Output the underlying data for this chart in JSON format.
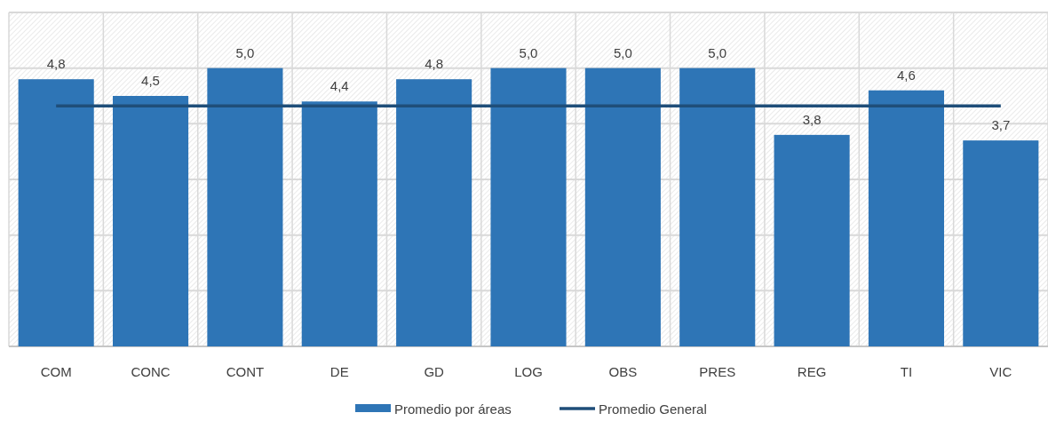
{
  "chart_data": {
    "type": "bar",
    "categories": [
      "COM",
      "CONC",
      "CONT",
      "DE",
      "GD",
      "LOG",
      "OBS",
      "PRES",
      "REG",
      "TI",
      "VIC"
    ],
    "series": [
      {
        "name": "Promedio por áreas",
        "color": "#2e75b6",
        "values": [
          4.8,
          4.5,
          5.0,
          4.4,
          4.8,
          5.0,
          5.0,
          5.0,
          3.8,
          4.6,
          3.7
        ],
        "value_labels": [
          "4,8",
          "4,5",
          "5,0",
          "4,4",
          "4,8",
          "5,0",
          "5,0",
          "5,0",
          "3,8",
          "4,6",
          "3,7"
        ]
      },
      {
        "name": "Promedio General",
        "type": "line",
        "color": "#1f4e79",
        "values": [
          4.32,
          4.32,
          4.32,
          4.32,
          4.32,
          4.32,
          4.32,
          4.32,
          4.32,
          4.32,
          4.32
        ]
      }
    ],
    "ylim": [
      0,
      6
    ],
    "yticks": [
      {
        "value": 0,
        "label": null
      },
      {
        "value": 1,
        "label": null
      },
      {
        "value": 2,
        "label": null
      },
      {
        "value": 3,
        "label": null
      },
      {
        "value": 4,
        "label": null
      },
      {
        "value": 5,
        "label": null
      },
      {
        "value": 6,
        "label": null
      }
    ],
    "tick_labels": "x",
    "grid": true,
    "legend": "bottom",
    "marker": "none"
  }
}
